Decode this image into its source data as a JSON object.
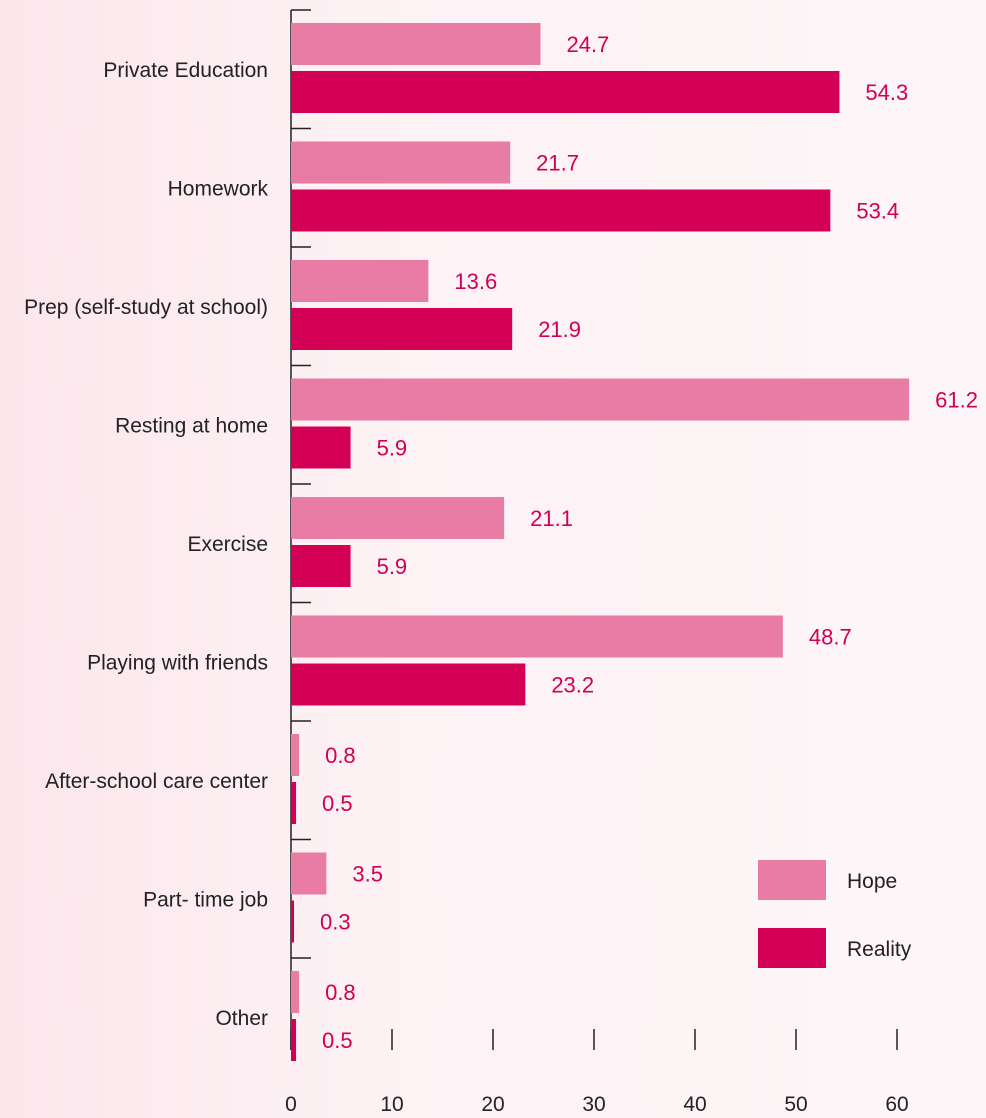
{
  "chart_data": {
    "type": "bar",
    "orientation": "horizontal",
    "categories": [
      "Private Education",
      "Homework",
      "Prep (self-study at school)",
      "Resting at home",
      "Exercise",
      "Playing with friends",
      "After-school care center",
      "Part- time job",
      "Other"
    ],
    "series": [
      {
        "name": "Hope",
        "values": [
          24.7,
          21.7,
          13.6,
          61.2,
          21.1,
          48.7,
          0.8,
          3.5,
          0.8
        ],
        "labels": [
          "24.7",
          "21.7",
          "13.6",
          "61.2",
          "21.1",
          "48.7",
          "0.8",
          "3.5",
          "0.8"
        ]
      },
      {
        "name": "Reality",
        "values": [
          54.3,
          53.4,
          21.9,
          5.9,
          5.9,
          23.2,
          0.5,
          0.3,
          0.5
        ],
        "labels": [
          "54.3",
          "53.4",
          "21.9",
          "5.9",
          "5.9",
          "23.2",
          "0.5",
          "0.3",
          "0.5"
        ]
      }
    ],
    "xlim": [
      0,
      60
    ],
    "x_ticks": [
      "0",
      "10",
      "20",
      "30",
      "40",
      "50",
      "60"
    ],
    "title": "",
    "xlabel": "",
    "ylabel": "",
    "grid": false,
    "legend_position": "bottom-right"
  },
  "colors": {
    "Hope": "#e87ca5",
    "Reality": "#d30056",
    "value_label": "#d10055",
    "axis": "#222222"
  }
}
